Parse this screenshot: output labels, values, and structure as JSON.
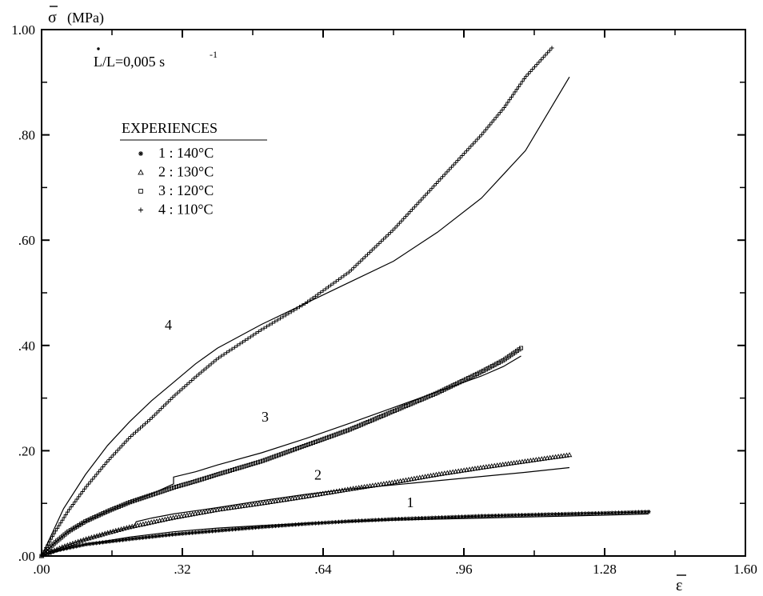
{
  "chart_data": {
    "type": "scatter",
    "ylabel_symbol": "σ",
    "ylabel_unit": "(MPa)",
    "xlabel": "ε",
    "annotation_rate_pre": "L",
    "annotation_rate_post": "/L=0,005 s",
    "annotation_rate_exp": "-1",
    "xlim": [
      0,
      1.6
    ],
    "ylim": [
      0,
      1.0
    ],
    "xticks": [
      0,
      0.32,
      0.64,
      0.96,
      1.28,
      1.6
    ],
    "xtick_labels": [
      ".00",
      ".32",
      ".64",
      ".96",
      "1.28",
      "1.60"
    ],
    "yticks": [
      0,
      0.2,
      0.4,
      0.6,
      0.8,
      1.0
    ],
    "ytick_labels": [
      ".00",
      ".20",
      ".40",
      ".60",
      ".80",
      "1.00"
    ],
    "legend_title": "EXPERIENCES",
    "legend_position": "upper-left",
    "series": [
      {
        "name": "1 : 140°C",
        "marker": "asterisk",
        "experimental": [
          [
            0.02,
            0.008
          ],
          [
            0.1,
            0.022
          ],
          [
            0.2,
            0.032
          ],
          [
            0.3,
            0.041
          ],
          [
            0.4,
            0.048
          ],
          [
            0.5,
            0.055
          ],
          [
            0.6,
            0.061
          ],
          [
            0.7,
            0.066
          ],
          [
            0.8,
            0.07
          ],
          [
            0.9,
            0.073
          ],
          [
            1.0,
            0.076
          ],
          [
            1.1,
            0.078
          ],
          [
            1.2,
            0.08
          ],
          [
            1.3,
            0.082
          ],
          [
            1.38,
            0.084
          ]
        ],
        "model": [
          [
            0.0,
            0.0
          ],
          [
            0.05,
            0.012
          ],
          [
            0.1,
            0.022
          ],
          [
            0.2,
            0.036
          ],
          [
            0.3,
            0.046
          ],
          [
            0.4,
            0.053
          ],
          [
            0.5,
            0.058
          ],
          [
            0.6,
            0.062
          ],
          [
            0.7,
            0.065
          ],
          [
            0.8,
            0.068
          ],
          [
            0.9,
            0.07
          ],
          [
            1.0,
            0.072
          ],
          [
            1.1,
            0.074
          ],
          [
            1.2,
            0.076
          ],
          [
            1.3,
            0.078
          ],
          [
            1.38,
            0.08
          ]
        ],
        "curve_label": "1",
        "curve_label_at": [
          0.83,
          0.093
        ]
      },
      {
        "name": "2 : 130°C",
        "marker": "triangle",
        "experimental": [
          [
            0.0,
            0.0
          ],
          [
            0.05,
            0.018
          ],
          [
            0.1,
            0.032
          ],
          [
            0.15,
            0.044
          ],
          [
            0.2,
            0.055
          ],
          [
            0.25,
            0.064
          ],
          [
            0.3,
            0.073
          ],
          [
            0.4,
            0.088
          ],
          [
            0.5,
            0.1
          ],
          [
            0.6,
            0.113
          ],
          [
            0.7,
            0.127
          ],
          [
            0.8,
            0.14
          ],
          [
            0.9,
            0.155
          ],
          [
            1.0,
            0.168
          ],
          [
            1.1,
            0.18
          ],
          [
            1.2,
            0.192
          ]
        ],
        "model": [
          [
            0.0,
            0.0
          ],
          [
            0.05,
            0.018
          ],
          [
            0.1,
            0.032
          ],
          [
            0.15,
            0.044
          ],
          [
            0.2,
            0.055
          ],
          [
            0.21,
            0.056
          ],
          [
            0.215,
            0.065
          ],
          [
            0.25,
            0.072
          ],
          [
            0.3,
            0.08
          ],
          [
            0.4,
            0.092
          ],
          [
            0.5,
            0.105
          ],
          [
            0.6,
            0.117
          ],
          [
            0.7,
            0.127
          ],
          [
            0.8,
            0.135
          ],
          [
            0.9,
            0.143
          ],
          [
            1.0,
            0.151
          ],
          [
            1.1,
            0.159
          ],
          [
            1.2,
            0.168
          ]
        ],
        "curve_label": "2",
        "curve_label_at": [
          0.62,
          0.145
        ]
      },
      {
        "name": "3 : 120°C",
        "marker": "square",
        "experimental": [
          [
            0.0,
            0.0
          ],
          [
            0.03,
            0.025
          ],
          [
            0.06,
            0.046
          ],
          [
            0.1,
            0.066
          ],
          [
            0.15,
            0.085
          ],
          [
            0.2,
            0.102
          ],
          [
            0.25,
            0.116
          ],
          [
            0.3,
            0.13
          ],
          [
            0.35,
            0.142
          ],
          [
            0.4,
            0.155
          ],
          [
            0.5,
            0.18
          ],
          [
            0.6,
            0.21
          ],
          [
            0.7,
            0.24
          ],
          [
            0.8,
            0.275
          ],
          [
            0.9,
            0.31
          ],
          [
            1.0,
            0.35
          ],
          [
            1.05,
            0.372
          ],
          [
            1.09,
            0.395
          ]
        ],
        "model": [
          [
            0.0,
            0.0
          ],
          [
            0.03,
            0.025
          ],
          [
            0.06,
            0.046
          ],
          [
            0.1,
            0.066
          ],
          [
            0.15,
            0.085
          ],
          [
            0.2,
            0.102
          ],
          [
            0.25,
            0.118
          ],
          [
            0.3,
            0.137
          ],
          [
            0.3,
            0.15
          ],
          [
            0.35,
            0.16
          ],
          [
            0.4,
            0.173
          ],
          [
            0.5,
            0.196
          ],
          [
            0.6,
            0.223
          ],
          [
            0.7,
            0.252
          ],
          [
            0.8,
            0.282
          ],
          [
            0.9,
            0.312
          ],
          [
            1.0,
            0.342
          ],
          [
            1.05,
            0.36
          ],
          [
            1.09,
            0.38
          ]
        ],
        "curve_label": "3",
        "curve_label_at": [
          0.5,
          0.255
        ]
      },
      {
        "name": "4 : 110°C",
        "marker": "plus",
        "experimental": [
          [
            0.0,
            0.0
          ],
          [
            0.03,
            0.045
          ],
          [
            0.06,
            0.085
          ],
          [
            0.1,
            0.13
          ],
          [
            0.15,
            0.18
          ],
          [
            0.2,
            0.225
          ],
          [
            0.25,
            0.262
          ],
          [
            0.3,
            0.303
          ],
          [
            0.35,
            0.34
          ],
          [
            0.4,
            0.375
          ],
          [
            0.5,
            0.43
          ],
          [
            0.6,
            0.48
          ],
          [
            0.7,
            0.54
          ],
          [
            0.8,
            0.62
          ],
          [
            0.9,
            0.71
          ],
          [
            1.0,
            0.8
          ],
          [
            1.05,
            0.85
          ],
          [
            1.1,
            0.91
          ],
          [
            1.16,
            0.965
          ]
        ],
        "model": [
          [
            0.0,
            0.0
          ],
          [
            0.05,
            0.09
          ],
          [
            0.1,
            0.155
          ],
          [
            0.15,
            0.21
          ],
          [
            0.2,
            0.255
          ],
          [
            0.25,
            0.295
          ],
          [
            0.3,
            0.33
          ],
          [
            0.35,
            0.365
          ],
          [
            0.4,
            0.395
          ],
          [
            0.5,
            0.44
          ],
          [
            0.6,
            0.48
          ],
          [
            0.7,
            0.52
          ],
          [
            0.8,
            0.56
          ],
          [
            0.9,
            0.615
          ],
          [
            1.0,
            0.68
          ],
          [
            1.1,
            0.77
          ],
          [
            1.2,
            0.91
          ]
        ],
        "curve_label": "4",
        "curve_label_at": [
          0.28,
          0.43
        ]
      }
    ]
  }
}
